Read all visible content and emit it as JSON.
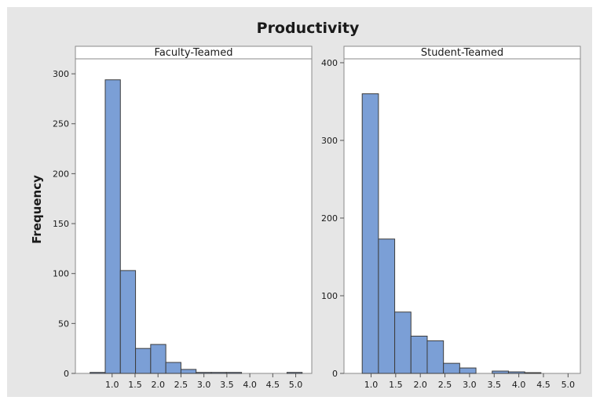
{
  "chart_data": {
    "type": "bar",
    "title": "Productivity",
    "ylabel": "Frequency",
    "xlabel": "",
    "grid": false,
    "colors": {
      "background": "#e6e6e6",
      "plot_area": "#ffffff",
      "bar_fill": "#7b9fd6",
      "bar_stroke": "#3d3d3d"
    },
    "panels": [
      {
        "name": "Faculty-Teamed",
        "xlim": [
          0.2,
          5.35
        ],
        "ylim": [
          0,
          315
        ],
        "xticks": [
          1.0,
          1.5,
          2.0,
          2.5,
          3.0,
          3.5,
          4.0,
          4.5,
          5.0
        ],
        "xtick_labels": [
          "1.0",
          "1.5",
          "2.0",
          "2.5",
          "3.0",
          "3.5",
          "4.0",
          "4.5",
          "5.0"
        ],
        "yticks": [
          0,
          50,
          100,
          150,
          200,
          250,
          300
        ],
        "bin_width": 0.33,
        "bin_starts": [
          0.52,
          0.85,
          1.18,
          1.51,
          1.84,
          2.17,
          2.5,
          2.83,
          3.16,
          3.49,
          3.82,
          4.15,
          4.48,
          4.81
        ],
        "values": [
          1,
          294,
          103,
          25,
          29,
          11,
          4,
          1,
          1,
          1,
          0,
          0,
          0,
          1
        ]
      },
      {
        "name": "Student-Teamed",
        "xlim": [
          0.45,
          5.25
        ],
        "ylim": [
          0,
          405
        ],
        "xticks": [
          1.0,
          1.5,
          2.0,
          2.5,
          3.0,
          3.5,
          4.0,
          4.5,
          5.0
        ],
        "xtick_labels": [
          "1.0",
          "1.5",
          "2.0",
          "2.5",
          "3.0",
          "3.5",
          "4.0",
          "4.5",
          "5.0"
        ],
        "yticks": [
          0,
          100,
          200,
          300,
          400
        ],
        "bin_width": 0.33,
        "bin_starts": [
          0.82,
          1.15,
          1.48,
          1.81,
          2.14,
          2.47,
          2.8,
          3.13,
          3.46,
          3.79,
          4.12,
          4.45,
          4.78
        ],
        "values": [
          360,
          173,
          79,
          48,
          42,
          13,
          7,
          0,
          3,
          2,
          1,
          0,
          0
        ]
      }
    ]
  }
}
